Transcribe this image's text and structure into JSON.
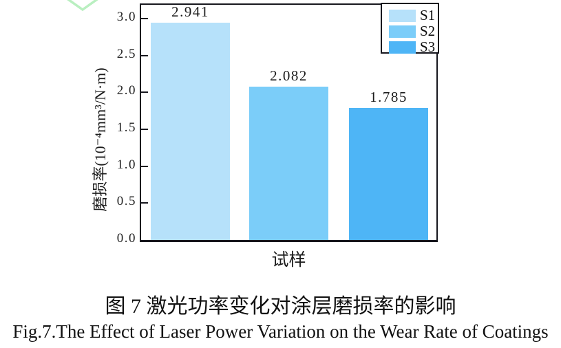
{
  "watermark": {
    "chevron_color": "#b9efc0"
  },
  "chart_data": {
    "type": "bar",
    "categories": [
      "S1",
      "S2",
      "S3"
    ],
    "values": [
      2.941,
      2.082,
      1.785
    ],
    "bar_labels": [
      "2.941",
      "2.082",
      "1.785"
    ],
    "title": "",
    "xlabel": "试样",
    "ylabel": "磨损率(10⁻⁴mm³/N·m)",
    "ylim": [
      0.0,
      3.0
    ],
    "ytick_values": [
      0.0,
      0.5,
      1.0,
      1.5,
      2.0,
      2.5,
      3.0
    ],
    "ytick_labels": [
      "0.0",
      "0.5",
      "1.0",
      "1.5",
      "2.0",
      "2.5",
      "3.0"
    ],
    "grid": false,
    "legend": {
      "position": "top-right",
      "entries": [
        {
          "label": "S1",
          "color": "#b6e1fa"
        },
        {
          "label": "S2",
          "color": "#7bcdf9"
        },
        {
          "label": "S3",
          "color": "#4eb5f6"
        }
      ]
    },
    "bar_colors": [
      "#b6e1fa",
      "#7bcdf9",
      "#4eb5f6"
    ],
    "spine_color": "#16161d"
  },
  "caption": {
    "line1": "图 7 激光功率变化对涂层磨损率的影响",
    "line2": "Fig.7.The Effect of Laser Power Variation on the Wear Rate of Coatings"
  }
}
